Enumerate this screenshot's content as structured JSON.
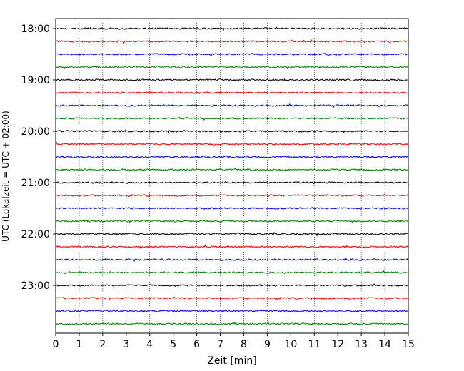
{
  "chart_data": {
    "type": "line",
    "xlabel": "Zeit  [min]",
    "ylabel": "UTC (Lokalzeit = UTC + 02:00)",
    "xlim": [
      0,
      15
    ],
    "x_ticks": [
      "0",
      "1",
      "2",
      "3",
      "4",
      "5",
      "6",
      "7",
      "8",
      "9",
      "10",
      "11",
      "12",
      "13",
      "14",
      "15"
    ],
    "y_ticks": [
      {
        "label": "18:00",
        "trace": 0
      },
      {
        "label": "19:00",
        "trace": 4
      },
      {
        "label": "20:00",
        "trace": 8
      },
      {
        "label": "21:00",
        "trace": 12
      },
      {
        "label": "22:00",
        "trace": 16
      },
      {
        "label": "23:00",
        "trace": 20
      }
    ],
    "trace_interval_minutes": 15,
    "trace_count": 24,
    "trace_colors": [
      "#000000",
      "#ff0000",
      "#0000ff",
      "#008000"
    ],
    "grid": "vertical dotted at each minute"
  }
}
